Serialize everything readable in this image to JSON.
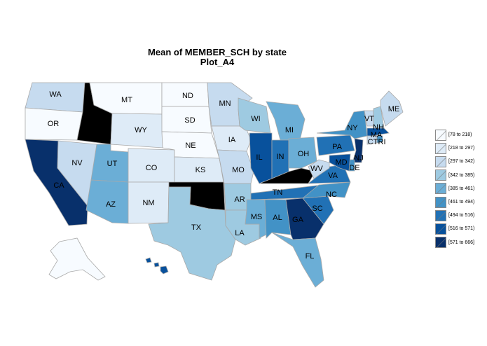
{
  "title": {
    "line1": "Mean of MEMBER_SCH by state",
    "line2": "Plot_A4"
  },
  "legend": {
    "colors": [
      "#f7fbff",
      "#deebf7",
      "#c6dbef",
      "#9ecae1",
      "#6baed6",
      "#4292c6",
      "#2171b5",
      "#08519c",
      "#08306b"
    ],
    "items": [
      {
        "label": "[78 to 218)"
      },
      {
        "label": "[218 to 297)"
      },
      {
        "label": "[297 to 342)"
      },
      {
        "label": "[342 to 385)"
      },
      {
        "label": "[385 to 461)"
      },
      {
        "label": "[461 to 494)"
      },
      {
        "label": "[494 to 516)"
      },
      {
        "label": "[516 to 571)"
      },
      {
        "label": "[571 to 666]"
      }
    ]
  },
  "missing_color": "#000000",
  "chart_data": {
    "type": "choropleth",
    "title": "Mean of MEMBER_SCH by state",
    "subtitle": "Plot_A4",
    "legend_placement": "right",
    "bins": [
      "[78 to 218)",
      "[218 to 297)",
      "[297 to 342)",
      "[342 to 385)",
      "[385 to 461)",
      "[461 to 494)",
      "[494 to 516)",
      "[516 to 571)",
      "[571 to 666]"
    ],
    "states": [
      {
        "code": "WA",
        "bin": 2
      },
      {
        "code": "OR",
        "bin": 0
      },
      {
        "code": "CA",
        "bin": 8
      },
      {
        "code": "NV",
        "bin": 2
      },
      {
        "code": "ID",
        "bin": null
      },
      {
        "code": "MT",
        "bin": 0
      },
      {
        "code": "WY",
        "bin": 1
      },
      {
        "code": "UT",
        "bin": 4
      },
      {
        "code": "CO",
        "bin": 1
      },
      {
        "code": "AZ",
        "bin": 4
      },
      {
        "code": "NM",
        "bin": 1
      },
      {
        "code": "ND",
        "bin": 0
      },
      {
        "code": "SD",
        "bin": 0
      },
      {
        "code": "NE",
        "bin": 0
      },
      {
        "code": "KS",
        "bin": 1
      },
      {
        "code": "OK",
        "bin": null
      },
      {
        "code": "TX",
        "bin": 3
      },
      {
        "code": "MN",
        "bin": 2
      },
      {
        "code": "IA",
        "bin": 1
      },
      {
        "code": "MO",
        "bin": 2
      },
      {
        "code": "AR",
        "bin": 3
      },
      {
        "code": "LA",
        "bin": 3
      },
      {
        "code": "WI",
        "bin": 3
      },
      {
        "code": "IL",
        "bin": 7
      },
      {
        "code": "MS",
        "bin": 4
      },
      {
        "code": "MI",
        "bin": 4
      },
      {
        "code": "IN",
        "bin": 6
      },
      {
        "code": "KY",
        "bin": null
      },
      {
        "code": "TN",
        "bin": 6
      },
      {
        "code": "AL",
        "bin": 5
      },
      {
        "code": "OH",
        "bin": 4
      },
      {
        "code": "GA",
        "bin": 8
      },
      {
        "code": "FL",
        "bin": 4
      },
      {
        "code": "SC",
        "bin": 6
      },
      {
        "code": "NC",
        "bin": 5
      },
      {
        "code": "VA",
        "bin": 6
      },
      {
        "code": "WV",
        "bin": 2
      },
      {
        "code": "PA",
        "bin": 6
      },
      {
        "code": "NY",
        "bin": 5
      },
      {
        "code": "VT",
        "bin": 2
      },
      {
        "code": "NH",
        "bin": 3
      },
      {
        "code": "ME",
        "bin": 2
      },
      {
        "code": "MA",
        "bin": 7
      },
      {
        "code": "CT",
        "bin": 2
      },
      {
        "code": "RI",
        "bin": 5
      },
      {
        "code": "NJ",
        "bin": 8
      },
      {
        "code": "DE",
        "bin": 5
      },
      {
        "code": "MD",
        "bin": 7
      },
      {
        "code": "AK",
        "bin": 0
      },
      {
        "code": "HI",
        "bin": 7
      }
    ]
  }
}
